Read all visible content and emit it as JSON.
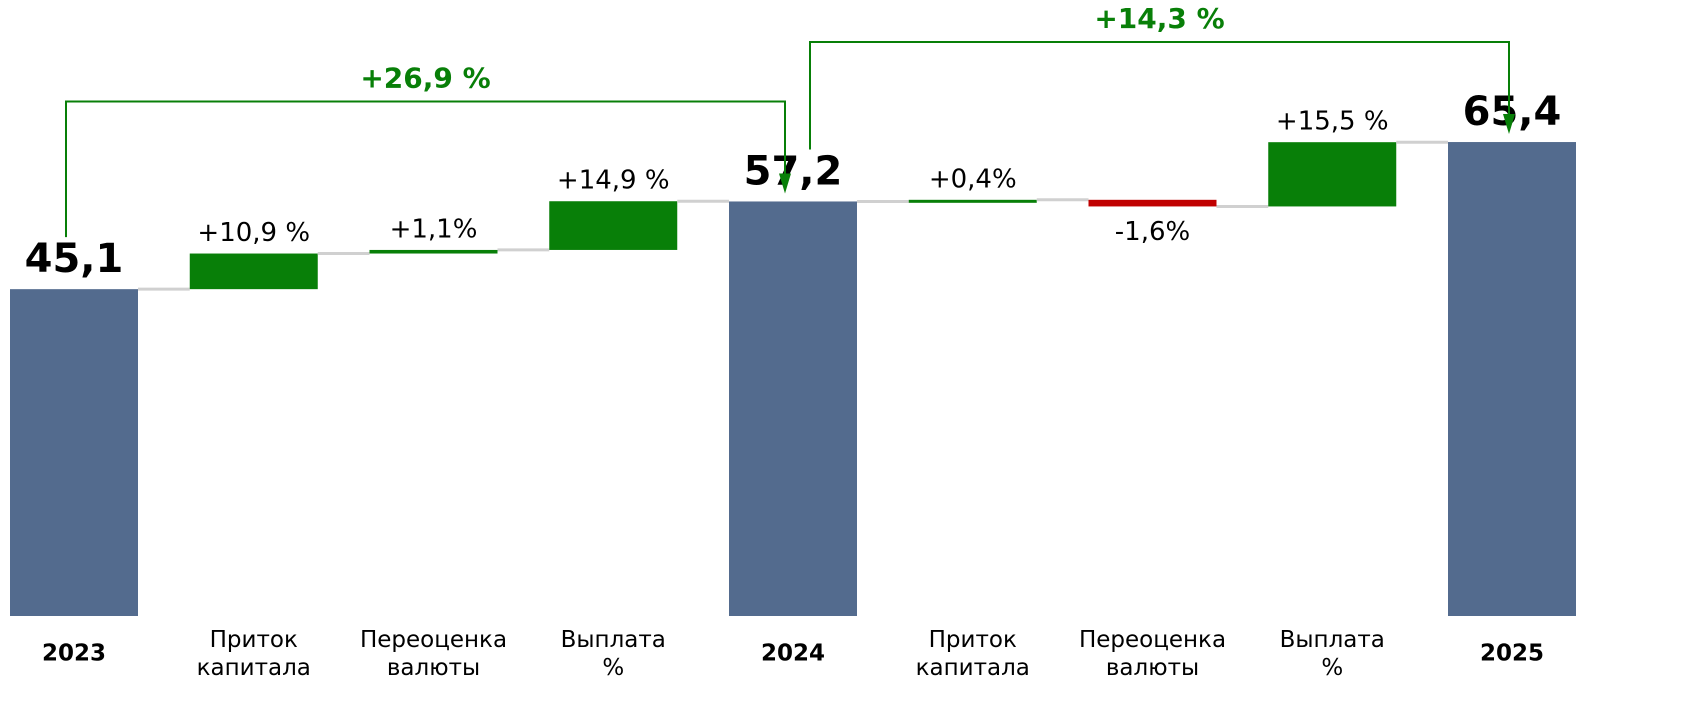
{
  "chart_data": {
    "type": "waterfall",
    "categories": [
      "2023",
      "Приток капитала",
      "Переоценка валюты",
      "Выплата %",
      "2024",
      "Приток капитала",
      "Переоценка валюты",
      "Выплата %",
      "2025"
    ],
    "measure": [
      "total",
      "relative",
      "relative",
      "relative",
      "total",
      "relative",
      "relative",
      "relative",
      "total"
    ],
    "values": [
      45.1,
      10.9,
      1.1,
      14.9,
      57.2,
      0.4,
      -1.6,
      15.5,
      65.4
    ],
    "value_labels": [
      "45,1",
      "+10,9 %",
      "+1,1%",
      "+14,9 %",
      "57,2",
      "+0,4%",
      "-1,6%",
      "+15,5 %",
      "65,4"
    ],
    "colors": {
      "total": "#536b8e",
      "increase": "#087f08",
      "decrease": "#c00000"
    },
    "ylim": [
      0,
      85
    ],
    "annotations": [
      {
        "value": 26.9,
        "label": "+26,9 %"
      },
      {
        "value": 14.3,
        "label": "+14,3 %"
      }
    ]
  }
}
